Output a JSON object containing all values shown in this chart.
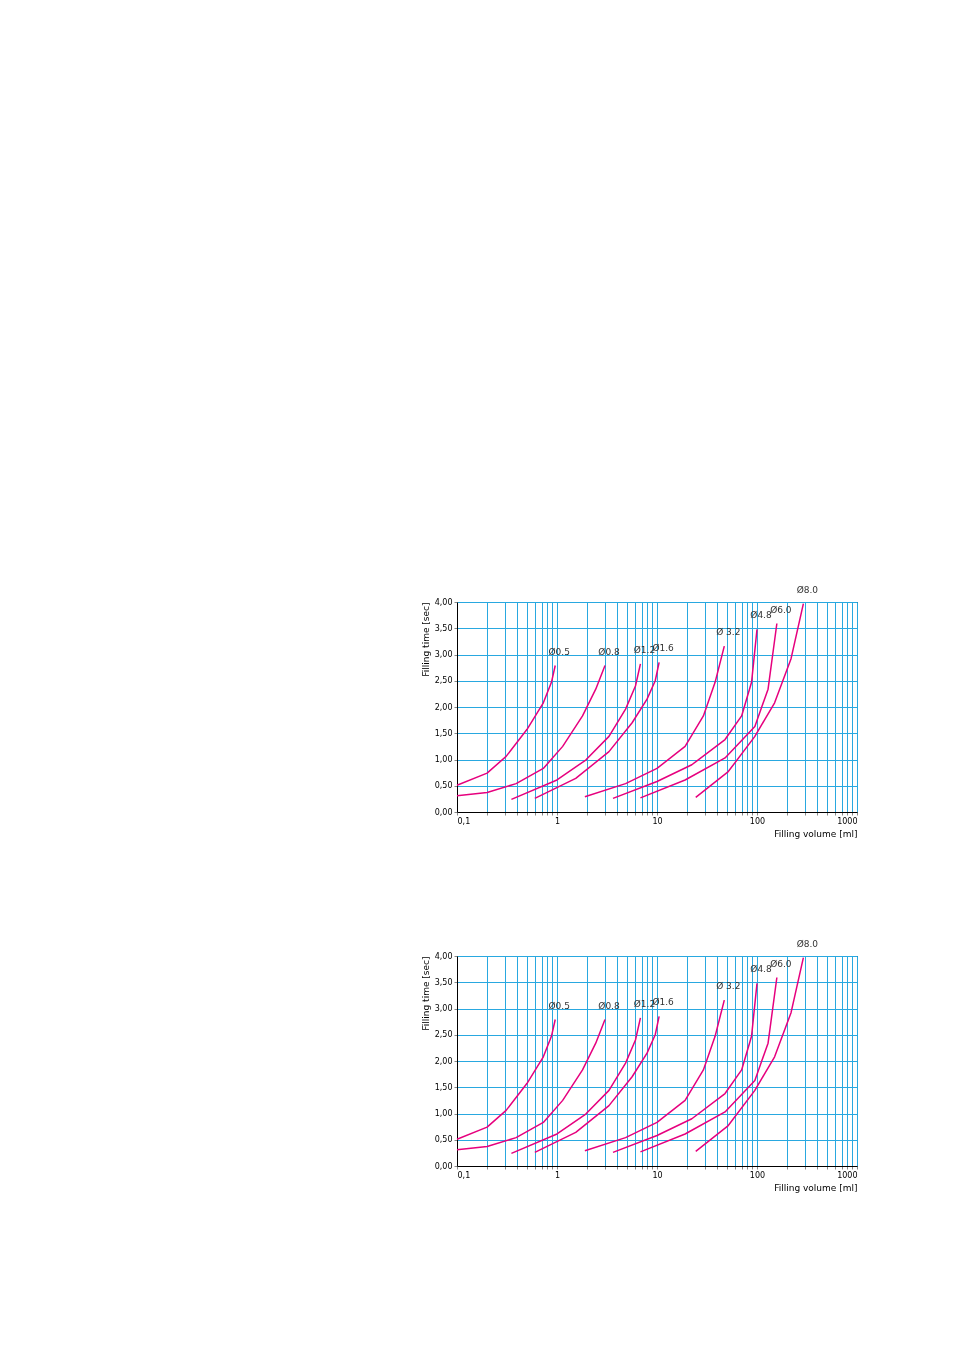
{
  "chart_data": [
    {
      "type": "line",
      "xlabel": "Filling volume [ml]",
      "ylabel": "Filling time [sec]",
      "log": "x",
      "grid": true,
      "legend": false,
      "marker": "none",
      "line_style": "solid",
      "xlim": [
        0.1,
        1000
      ],
      "ylim": [
        0,
        4
      ],
      "xticks": [
        {
          "value": 0.1,
          "label": "0,1"
        },
        {
          "value": 0.2,
          "label": null
        },
        {
          "value": 0.3,
          "label": null
        },
        {
          "value": 0.4,
          "label": null
        },
        {
          "value": 0.5,
          "label": null
        },
        {
          "value": 0.6,
          "label": null
        },
        {
          "value": 0.7,
          "label": null
        },
        {
          "value": 0.8,
          "label": null
        },
        {
          "value": 0.9,
          "label": null
        },
        1,
        {
          "value": 2,
          "label": null
        },
        {
          "value": 3,
          "label": null
        },
        {
          "value": 4,
          "label": null
        },
        {
          "value": 5,
          "label": null
        },
        {
          "value": 6,
          "label": null
        },
        {
          "value": 7,
          "label": null
        },
        {
          "value": 8,
          "label": null
        },
        {
          "value": 9,
          "label": null
        },
        10,
        {
          "value": 20,
          "label": null
        },
        {
          "value": 30,
          "label": null
        },
        {
          "value": 40,
          "label": null
        },
        {
          "value": 50,
          "label": null
        },
        {
          "value": 60,
          "label": null
        },
        {
          "value": 70,
          "label": null
        },
        {
          "value": 80,
          "label": null
        },
        {
          "value": 90,
          "label": null
        },
        100,
        {
          "value": 200,
          "label": null
        },
        {
          "value": 300,
          "label": null
        },
        {
          "value": 400,
          "label": null
        },
        {
          "value": 500,
          "label": null
        },
        {
          "value": 600,
          "label": null
        },
        {
          "value": 700,
          "label": null
        },
        {
          "value": 800,
          "label": null
        },
        {
          "value": 900,
          "label": null
        },
        1000
      ],
      "yticks": [
        {
          "value": 0,
          "label": "0,00"
        },
        {
          "value": 0.5,
          "label": "0,50"
        },
        {
          "value": 1,
          "label": "1,00"
        },
        {
          "value": 1.5,
          "label": "1,50"
        },
        {
          "value": 2,
          "label": "2,00"
        },
        {
          "value": 2.5,
          "label": "2,50"
        },
        {
          "value": 3,
          "label": "3,00"
        },
        {
          "value": 3.5,
          "label": "3,50"
        },
        {
          "value": 4,
          "label": "4,00"
        }
      ],
      "series": [
        {
          "name": "Ø0.5",
          "color": "#e6007e",
          "x": [
            0.1,
            0.2,
            0.31,
            0.5,
            0.73,
            0.88,
            0.96
          ],
          "values": [
            0.51,
            0.74,
            1.06,
            1.57,
            2.08,
            2.47,
            2.79
          ]
        },
        {
          "name": "Ø0.8",
          "color": "#e6007e",
          "x": [
            0.1,
            0.2,
            0.39,
            0.73,
            1.14,
            1.8,
            2.44,
            3.02
          ],
          "values": [
            0.31,
            0.37,
            0.54,
            0.83,
            1.25,
            1.83,
            2.34,
            2.79
          ]
        },
        {
          "name": "Ø1.2",
          "color": "#e6007e",
          "x": [
            0.35,
            1,
            1.94,
            3.31,
            4.85,
            6.09,
            6.83
          ],
          "values": [
            0.24,
            0.61,
            0.99,
            1.44,
            1.96,
            2.4,
            2.82
          ]
        },
        {
          "name": "Ø1.6",
          "color": "#e6007e",
          "x": [
            0.6,
            1.54,
            3.31,
            5.64,
            7.95,
            9.6,
            10.5
          ],
          "values": [
            0.26,
            0.64,
            1.15,
            1.7,
            2.15,
            2.5,
            2.85
          ]
        },
        {
          "name": "Ø 3.2",
          "color": "#e6007e",
          "x": [
            1.9,
            4.85,
            10,
            19.1,
            29.1,
            38.1,
            47.1
          ],
          "values": [
            0.29,
            0.54,
            0.83,
            1.25,
            1.83,
            2.47,
            3.16
          ]
        },
        {
          "name": "Ø4.8",
          "color": "#e6007e",
          "x": [
            3.63,
            10,
            22.3,
            47.9,
            70.2,
            88.2,
            100
          ],
          "values": [
            0.26,
            0.58,
            0.9,
            1.38,
            1.83,
            2.47,
            3.48
          ]
        },
        {
          "name": "Ø6.0",
          "color": "#e6007e",
          "x": [
            6.83,
            19.1,
            47.9,
            95.2,
            129,
            158
          ],
          "values": [
            0.27,
            0.61,
            1.03,
            1.63,
            2.34,
            3.59
          ]
        },
        {
          "name": "Ø8.0",
          "color": "#e6007e",
          "x": [
            24.4,
            51.6,
            95.2,
            150,
            219,
            291
          ],
          "values": [
            0.28,
            0.77,
            1.44,
            2.08,
            2.92,
            3.97
          ]
        }
      ]
    },
    {
      "type": "line",
      "xlabel": "Filling volume [ml]",
      "ylabel": "Filling time [sec]",
      "log": "x",
      "grid": true,
      "legend": false,
      "marker": "none",
      "line_style": "solid",
      "xlim": [
        0.1,
        1000
      ],
      "ylim": [
        0,
        4
      ],
      "xticks": [
        {
          "value": 0.1,
          "label": "0,1"
        },
        {
          "value": 0.2,
          "label": null
        },
        {
          "value": 0.3,
          "label": null
        },
        {
          "value": 0.4,
          "label": null
        },
        {
          "value": 0.5,
          "label": null
        },
        {
          "value": 0.6,
          "label": null
        },
        {
          "value": 0.7,
          "label": null
        },
        {
          "value": 0.8,
          "label": null
        },
        {
          "value": 0.9,
          "label": null
        },
        1,
        {
          "value": 2,
          "label": null
        },
        {
          "value": 3,
          "label": null
        },
        {
          "value": 4,
          "label": null
        },
        {
          "value": 5,
          "label": null
        },
        {
          "value": 6,
          "label": null
        },
        {
          "value": 7,
          "label": null
        },
        {
          "value": 8,
          "label": null
        },
        {
          "value": 9,
          "label": null
        },
        10,
        {
          "value": 20,
          "label": null
        },
        {
          "value": 30,
          "label": null
        },
        {
          "value": 40,
          "label": null
        },
        {
          "value": 50,
          "label": null
        },
        {
          "value": 60,
          "label": null
        },
        {
          "value": 70,
          "label": null
        },
        {
          "value": 80,
          "label": null
        },
        {
          "value": 90,
          "label": null
        },
        100,
        {
          "value": 200,
          "label": null
        },
        {
          "value": 300,
          "label": null
        },
        {
          "value": 400,
          "label": null
        },
        {
          "value": 500,
          "label": null
        },
        {
          "value": 600,
          "label": null
        },
        {
          "value": 700,
          "label": null
        },
        {
          "value": 800,
          "label": null
        },
        {
          "value": 900,
          "label": null
        },
        1000
      ],
      "yticks": [
        {
          "value": 0,
          "label": "0,00"
        },
        {
          "value": 0.5,
          "label": "0,50"
        },
        {
          "value": 1,
          "label": "1,00"
        },
        {
          "value": 1.5,
          "label": "1,50"
        },
        {
          "value": 2,
          "label": "2,00"
        },
        {
          "value": 2.5,
          "label": "2,50"
        },
        {
          "value": 3,
          "label": "3,00"
        },
        {
          "value": 3.5,
          "label": "3,50"
        },
        {
          "value": 4,
          "label": "4,00"
        }
      ],
      "series": [
        {
          "name": "Ø0.5",
          "color": "#e6007e",
          "x": [
            0.1,
            0.2,
            0.31,
            0.5,
            0.73,
            0.88,
            0.96
          ],
          "values": [
            0.51,
            0.74,
            1.06,
            1.57,
            2.08,
            2.47,
            2.79
          ]
        },
        {
          "name": "Ø0.8",
          "color": "#e6007e",
          "x": [
            0.1,
            0.2,
            0.39,
            0.73,
            1.14,
            1.8,
            2.44,
            3.02
          ],
          "values": [
            0.31,
            0.37,
            0.54,
            0.83,
            1.25,
            1.83,
            2.34,
            2.79
          ]
        },
        {
          "name": "Ø1.2",
          "color": "#e6007e",
          "x": [
            0.35,
            1,
            1.94,
            3.31,
            4.85,
            6.09,
            6.83
          ],
          "values": [
            0.24,
            0.61,
            0.99,
            1.44,
            1.96,
            2.4,
            2.82
          ]
        },
        {
          "name": "Ø1.6",
          "color": "#e6007e",
          "x": [
            0.6,
            1.54,
            3.31,
            5.64,
            7.95,
            9.6,
            10.5
          ],
          "values": [
            0.26,
            0.64,
            1.15,
            1.7,
            2.15,
            2.5,
            2.85
          ]
        },
        {
          "name": "Ø 3.2",
          "color": "#e6007e",
          "x": [
            1.9,
            4.85,
            10,
            19.1,
            29.1,
            38.1,
            47.1
          ],
          "values": [
            0.29,
            0.54,
            0.83,
            1.25,
            1.83,
            2.47,
            3.16
          ]
        },
        {
          "name": "Ø4.8",
          "color": "#e6007e",
          "x": [
            3.63,
            10,
            22.3,
            47.9,
            70.2,
            88.2,
            100
          ],
          "values": [
            0.26,
            0.58,
            0.9,
            1.38,
            1.83,
            2.47,
            3.48
          ]
        },
        {
          "name": "Ø6.0",
          "color": "#e6007e",
          "x": [
            6.83,
            19.1,
            47.9,
            95.2,
            129,
            158
          ],
          "values": [
            0.27,
            0.61,
            1.03,
            1.63,
            2.34,
            3.59
          ]
        },
        {
          "name": "Ø8.0",
          "color": "#e6007e",
          "x": [
            24.4,
            51.6,
            95.2,
            150,
            219,
            291
          ],
          "values": [
            0.28,
            0.77,
            1.44,
            2.08,
            2.92,
            3.97
          ]
        }
      ]
    }
  ]
}
